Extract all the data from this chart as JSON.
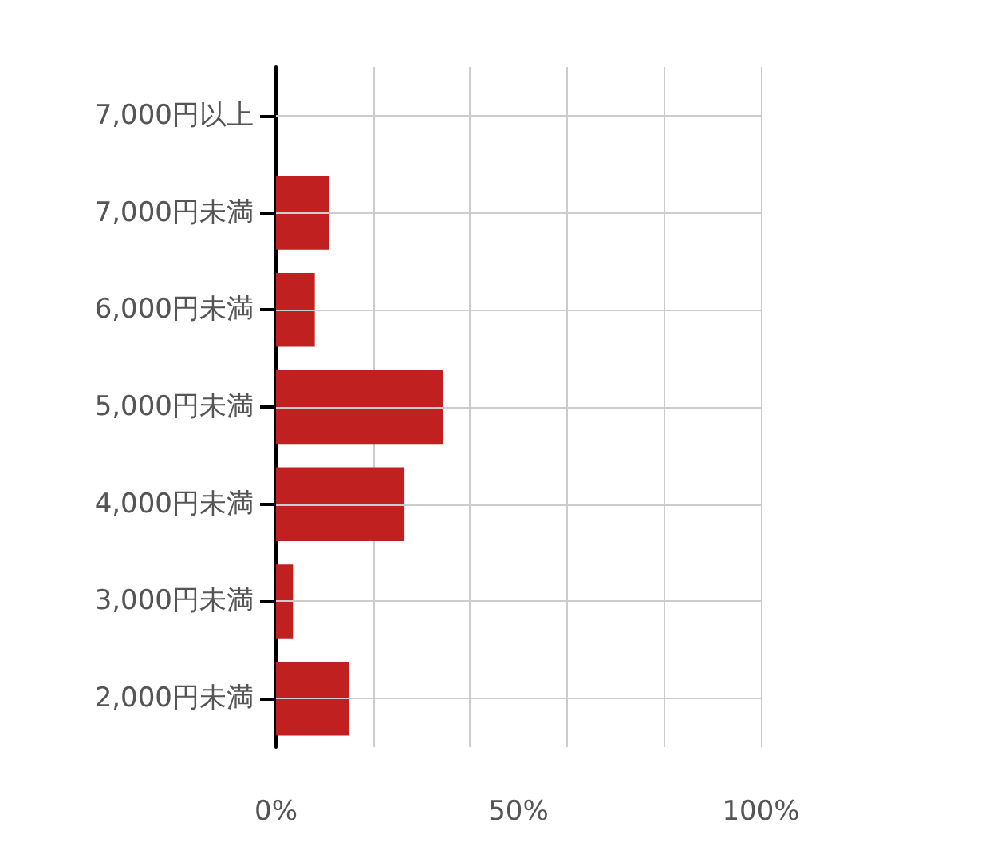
{
  "chart_data": {
    "type": "bar",
    "orientation": "horizontal",
    "categories": [
      "7,000円以上",
      "7,000円未満",
      "6,000円未満",
      "5,000円未満",
      "4,000円未満",
      "3,000円未満",
      "2,000円未満"
    ],
    "values": [
      0,
      11,
      8,
      34.5,
      26.5,
      3.5,
      15
    ],
    "color": "#c0201f",
    "xlim": [
      0,
      100
    ],
    "xticks": [
      {
        "value": 0,
        "label": "0%"
      },
      {
        "value": 50,
        "label": "50%"
      },
      {
        "value": 100,
        "label": "100%"
      }
    ],
    "grid": true
  }
}
